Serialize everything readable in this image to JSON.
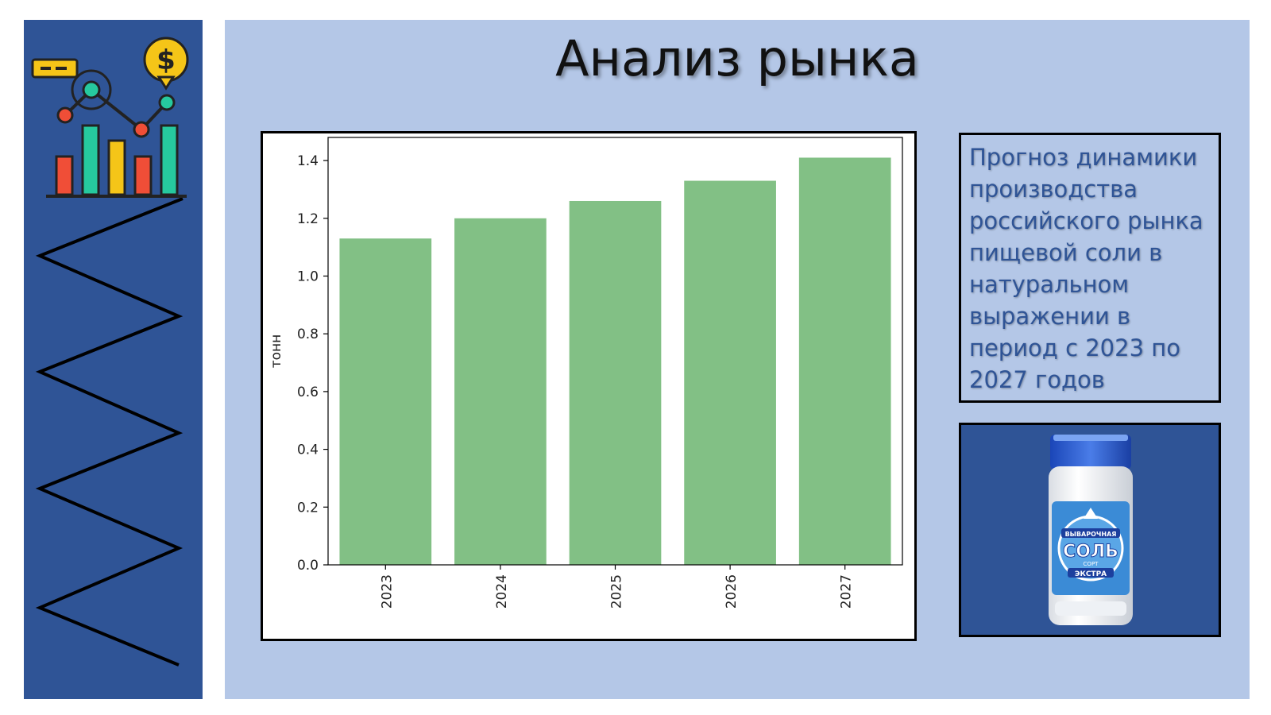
{
  "slide": {
    "title": "Анализ рынка",
    "description": "Прогноз динамики производства российского рынка пищевой соли в натуральном выражении в период с 2023 по 2027 годов"
  },
  "product_label": {
    "line1": "ВЫВАРОЧНАЯ",
    "line2": "СОЛЬ",
    "line3": "СОРТ",
    "line4": "ЭКСТРА"
  },
  "colors": {
    "sidebar": "#2f5496",
    "main_bg": "#b4c7e7",
    "bar": "#82c085",
    "description_text": "#2f5496"
  },
  "icons": {
    "sidebar_logo": "analytics-chart-dollar-icon",
    "photo": "salt-jar-image"
  },
  "chart_data": {
    "type": "bar",
    "categories": [
      "2023",
      "2024",
      "2025",
      "2026",
      "2027"
    ],
    "values": [
      1.13,
      1.2,
      1.26,
      1.33,
      1.41
    ],
    "title": "",
    "xlabel": "",
    "ylabel": "тонн",
    "ylim": [
      0,
      1.48
    ],
    "yticks": [
      "0.0",
      "0.2",
      "0.4",
      "0.6",
      "0.8",
      "1.0",
      "1.2",
      "1.4"
    ],
    "ytick_values": [
      0,
      0.2,
      0.4,
      0.6,
      0.8,
      1.0,
      1.2,
      1.4
    ],
    "grid": false,
    "xtick_rotation": "vertical"
  }
}
